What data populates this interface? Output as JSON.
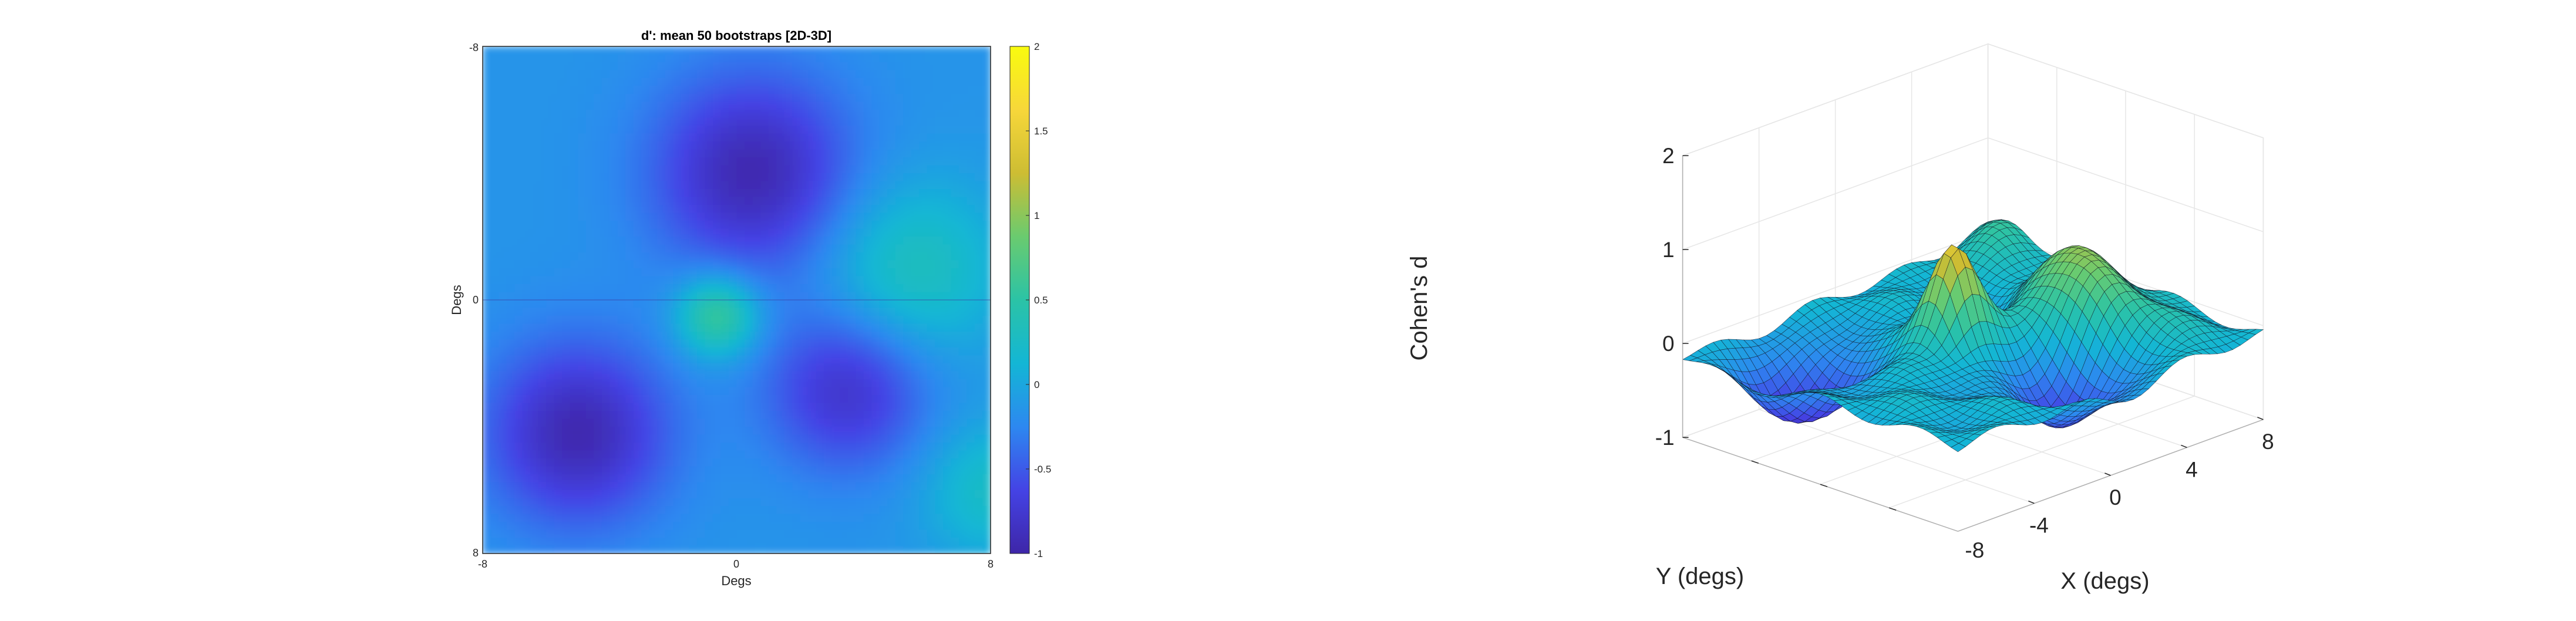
{
  "chart_data": [
    {
      "type": "heatmap",
      "title": "d': mean 50 bootstraps [2D-3D]",
      "xlabel": "Degs",
      "ylabel": "Degs",
      "xlim": [
        -8,
        8
      ],
      "ylim": [
        -8,
        8
      ],
      "y_direction": "top-to-bottom",
      "x_ticks": [
        "-8",
        "0",
        "8"
      ],
      "y_ticks": [
        "-8",
        "0",
        "8"
      ],
      "crosshair": true,
      "colormap": "parula",
      "colorbar": {
        "range": [
          -1,
          2
        ],
        "ticks": [
          "2",
          "1.5",
          "1",
          "0.5",
          "0",
          "-0.5",
          "-1"
        ],
        "placement": "right"
      },
      "features": [
        {
          "x": 0.5,
          "y": -4.0,
          "value": -0.95,
          "spread": 2.2
        },
        {
          "x": -5.0,
          "y": 4.2,
          "value": -0.95,
          "spread": 2.0
        },
        {
          "x": 3.5,
          "y": 2.8,
          "value": -0.8,
          "spread": 1.8
        },
        {
          "x": -0.6,
          "y": 0.5,
          "value": 0.65,
          "spread": 0.9
        },
        {
          "x": 5.5,
          "y": -0.9,
          "value": 0.35,
          "spread": 2.0
        },
        {
          "x": 8.0,
          "y": 6.0,
          "value": 0.25,
          "spread": 1.5
        }
      ],
      "baseline_value": -0.15
    },
    {
      "type": "surface",
      "title": "",
      "xlabel": "X (degs)",
      "ylabel": "Y (degs)",
      "zlabel": "Cohen's d",
      "xlim": [
        -8,
        8
      ],
      "ylim": [
        -8,
        8
      ],
      "zlim": [
        -1,
        2
      ],
      "x_ticks": [
        "-4",
        "0",
        "4",
        "8"
      ],
      "y_ticks": [
        "-8"
      ],
      "z_ticks": [
        "2",
        "1",
        "0",
        "-1"
      ],
      "grid": true,
      "colormap": "parula",
      "mesh": true
    }
  ]
}
